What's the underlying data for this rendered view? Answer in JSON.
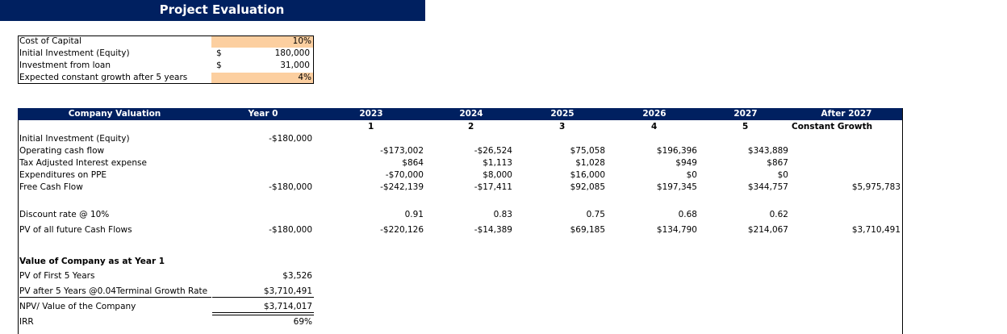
{
  "title": "Project Evaluation",
  "inputs": [
    {
      "label": "Cost of Capital",
      "cur": "",
      "value": "10%"
    },
    {
      "label": "Initial Investment (Equity)",
      "cur": "$",
      "value": "180,000"
    },
    {
      "label": "Investment from loan",
      "cur": "$",
      "value": "31,000"
    },
    {
      "label": "Expected constant growth after 5 years",
      "cur": "",
      "value": "4%"
    }
  ],
  "valuation": {
    "header": {
      "title": "Company Valuation",
      "year0": "Year 0",
      "years": [
        "2023",
        "2024",
        "2025",
        "2026",
        "2027"
      ],
      "after": "After 2027"
    },
    "periods": [
      "1",
      "2",
      "3",
      "4",
      "5"
    ],
    "constant_growth": "Constant Growth",
    "rows": {
      "initial_investment": {
        "label": "Initial Investment (Equity)",
        "y0": "-$180,000"
      },
      "operating_cash_flow": {
        "label": "Operating cash flow",
        "vals": [
          "-$173,002",
          "-$26,524",
          "$75,058",
          "$196,396",
          "$343,889"
        ]
      },
      "tax_interest": {
        "label": "Tax Adjusted Interest expense",
        "vals": [
          "$864",
          "$1,113",
          "$1,028",
          "$949",
          "$867"
        ]
      },
      "ppe": {
        "label": "Expenditures on PPE",
        "vals": [
          "-$70,000",
          "$8,000",
          "$16,000",
          "$0",
          "$0"
        ]
      },
      "fcf": {
        "label": "Free Cash Flow",
        "y0": "-$180,000",
        "vals": [
          "-$242,139",
          "-$17,411",
          "$92,085",
          "$197,345",
          "$344,757"
        ],
        "after": "$5,975,783"
      },
      "discount": {
        "label": "Discount rate @ 10%",
        "vals": [
          "0.91",
          "0.83",
          "0.75",
          "0.68",
          "0.62"
        ]
      },
      "pv": {
        "label": "PV of all future Cash Flows",
        "y0": "-$180,000",
        "vals": [
          "-$220,126",
          "-$14,389",
          "$69,185",
          "$134,790",
          "$214,067"
        ],
        "after": "$3,710,491"
      }
    },
    "summary": {
      "title": "Value of Company as at Year 1",
      "pv5": {
        "label": "PV of First 5 Years",
        "value": "$3,526"
      },
      "pv_after": {
        "label": "PV after 5 Years @0.04Terminal Growth Rate",
        "value": "$3,710,491"
      },
      "npv": {
        "label": "NPV/ Value of the Company",
        "value": "$3,714,017"
      },
      "irr": {
        "label": "IRR",
        "value": "69%"
      }
    }
  }
}
